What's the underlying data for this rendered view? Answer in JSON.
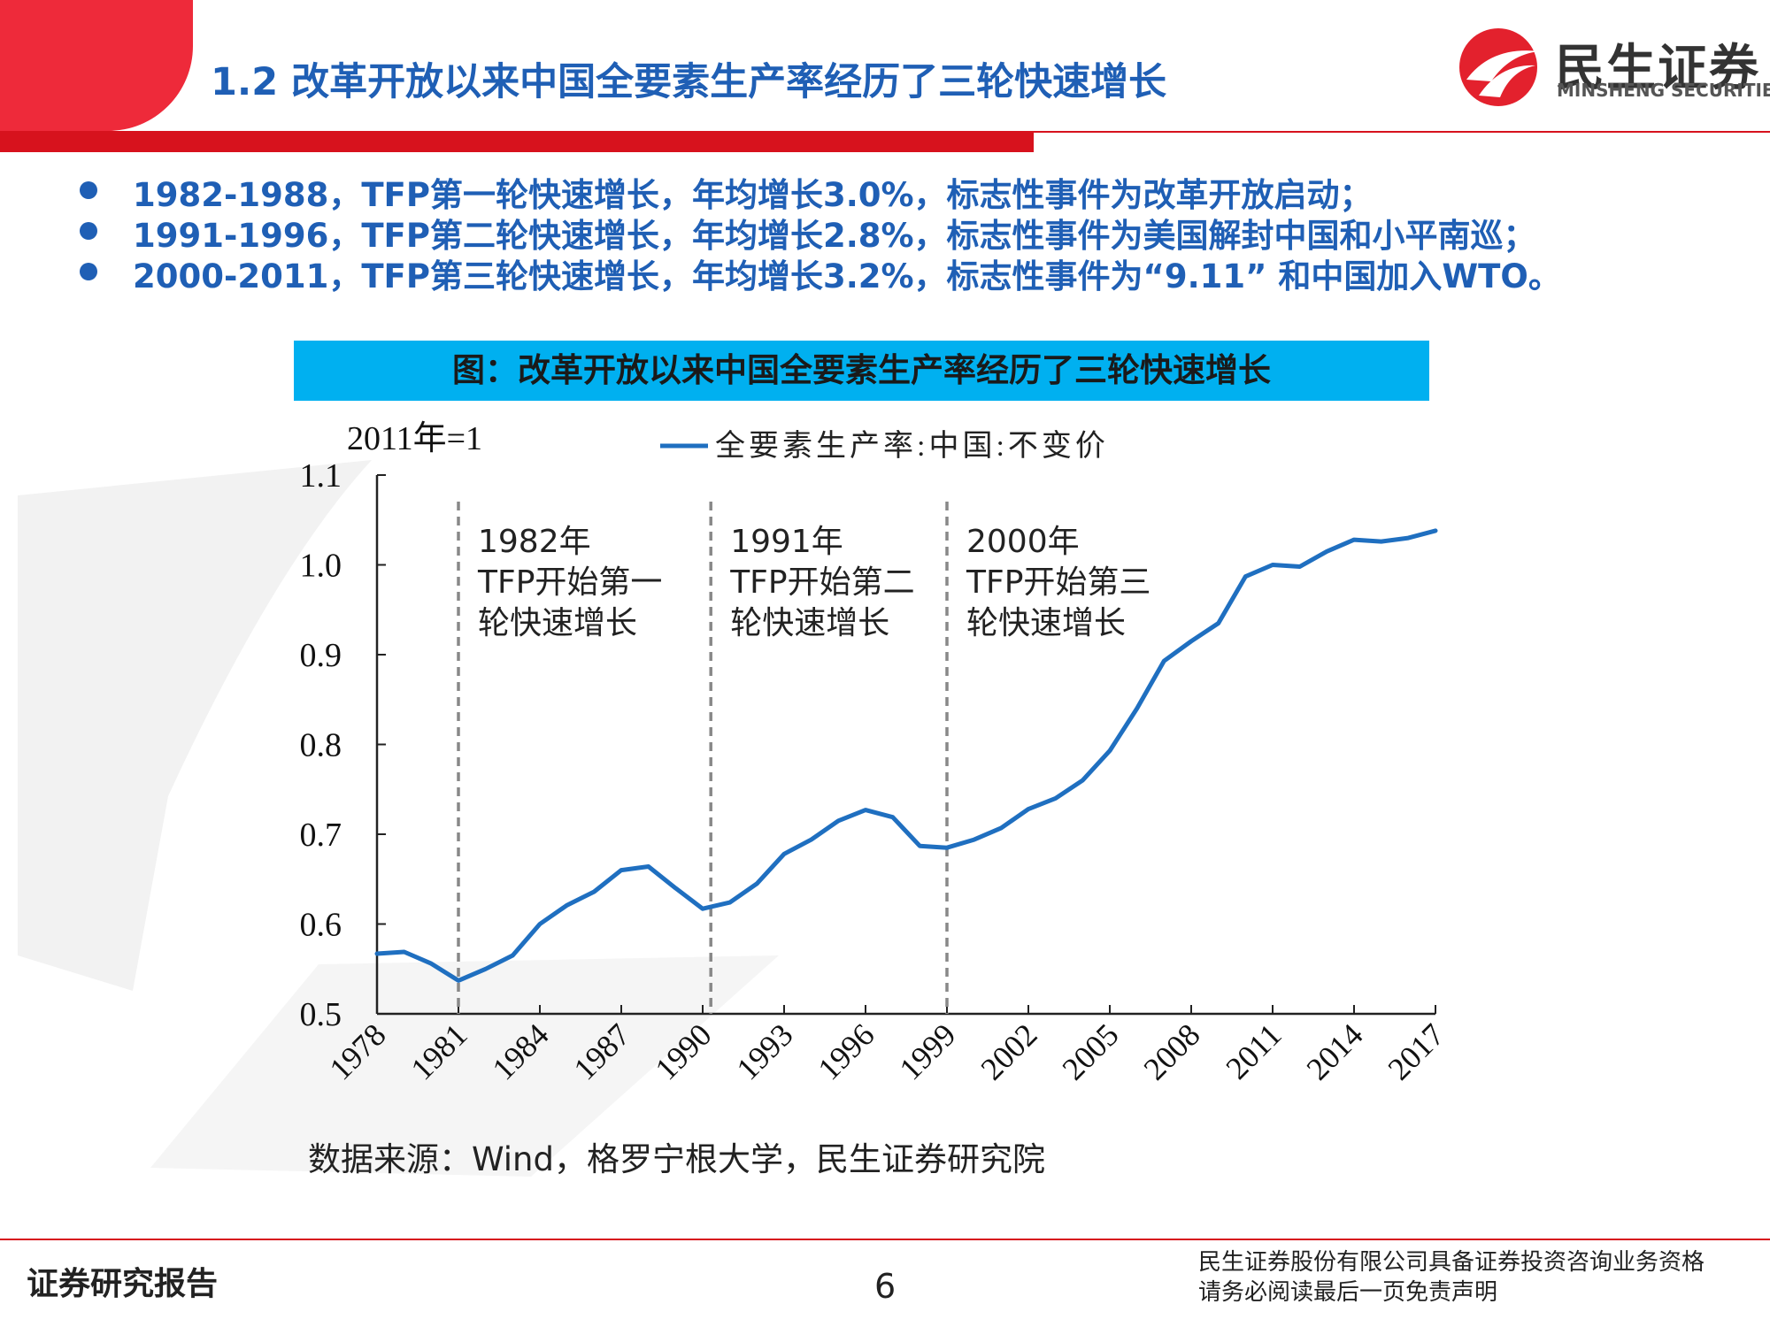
{
  "header": {
    "title": "1.2 改革开放以来中国全要素生产率经历了三轮快速增长",
    "logo_cn": "民生证券",
    "logo_en": "MINSHENG SECURITIES"
  },
  "bullets": [
    "1982-1988，TFP第一轮快速增长，年均增长3.0%，标志性事件为改革开放启动；",
    "1991-1996，TFP第二轮快速增长，年均增长2.8%，标志性事件为美国解封中国和小平南巡；",
    "2000-2011，TFP第三轮快速增长，年均增长3.2%，标志性事件为“9.11” 和中国加入WTO。"
  ],
  "chart_title": "图：改革开放以来中国全要素生产率经历了三轮快速增长",
  "chart_data": {
    "type": "line",
    "unit_note": "2011年=1",
    "xlim": [
      1978,
      2017
    ],
    "ylim": [
      0.5,
      1.1
    ],
    "yticks": [
      "0.5",
      "0.6",
      "0.7",
      "0.8",
      "0.9",
      "1.0",
      "1.1"
    ],
    "xticks": [
      "1978",
      "1981",
      "1984",
      "1987",
      "1990",
      "1993",
      "1996",
      "1999",
      "2002",
      "2005",
      "2008",
      "2011",
      "2014",
      "2017"
    ],
    "series": [
      {
        "name": "全要素生产率:中国:不变价",
        "color": "#1f6fc0",
        "x": [
          1978,
          1979,
          1980,
          1981,
          1982,
          1983,
          1984,
          1985,
          1986,
          1987,
          1988,
          1989,
          1990,
          1991,
          1992,
          1993,
          1994,
          1995,
          1996,
          1997,
          1998,
          1999,
          2000,
          2001,
          2002,
          2003,
          2004,
          2005,
          2006,
          2007,
          2008,
          2009,
          2010,
          2011,
          2012,
          2013,
          2014,
          2015,
          2016,
          2017
        ],
        "values": [
          0.567,
          0.569,
          0.556,
          0.537,
          0.55,
          0.565,
          0.6,
          0.621,
          0.636,
          0.66,
          0.664,
          0.64,
          0.617,
          0.624,
          0.645,
          0.678,
          0.694,
          0.715,
          0.727,
          0.719,
          0.687,
          0.685,
          0.694,
          0.707,
          0.728,
          0.74,
          0.76,
          0.793,
          0.84,
          0.893,
          0.915,
          0.935,
          0.987,
          1.0,
          0.998,
          1.015,
          1.028,
          1.026,
          1.03,
          1.038
        ]
      }
    ],
    "dividers": [
      1981,
      1990.3,
      1999
    ],
    "annotations": [
      {
        "lines": [
          "1982年",
          "TFP开始第一",
          "轮快速增长"
        ]
      },
      {
        "lines": [
          "1991年",
          "TFP开始第二",
          "轮快速增长"
        ]
      },
      {
        "lines": [
          "2000年",
          "TFP开始第三",
          "轮快速增长"
        ]
      }
    ]
  },
  "source": "数据来源：Wind，格罗宁根大学，民生证券研究院",
  "footer": {
    "left": "证券研究报告",
    "page": "6",
    "right_line1": "民生证券股份有限公司具备证券投资咨询业务资格",
    "right_line2": "请务必阅读最后一页免责声明"
  }
}
